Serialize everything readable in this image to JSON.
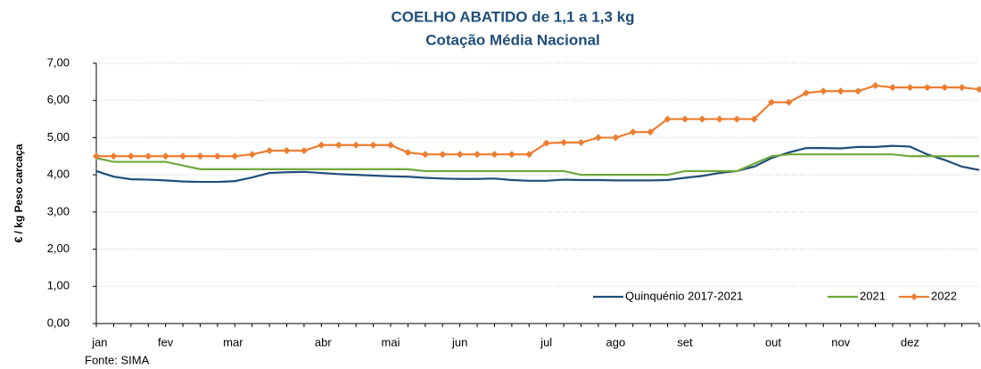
{
  "chart_data": {
    "type": "line",
    "title": "COELHO ABATIDO de 1,1 a 1,3 kg",
    "subtitle": "Cotação Média Nacional",
    "y_label": "€ / kg Peso carcaça",
    "source": "Fonte: SIMA",
    "x": [
      1,
      2,
      3,
      4,
      5,
      6,
      7,
      8,
      9,
      10,
      11,
      12,
      13,
      14,
      15,
      16,
      17,
      18,
      19,
      20,
      21,
      22,
      23,
      24,
      25,
      26,
      27,
      28,
      29,
      30,
      31,
      32,
      33,
      34,
      35,
      36,
      37,
      38,
      39,
      40,
      41,
      42,
      43,
      44,
      45,
      46,
      47,
      48,
      49,
      50,
      51,
      52
    ],
    "xlim": [
      1,
      52
    ],
    "xticks": [
      {
        "value": 1.2,
        "label": "jan"
      },
      {
        "value": 5,
        "label": "fev"
      },
      {
        "value": 8.9,
        "label": "mar"
      },
      {
        "value": 14.1,
        "label": "abr"
      },
      {
        "value": 18,
        "label": "mai"
      },
      {
        "value": 22,
        "label": "jun"
      },
      {
        "value": 27,
        "label": "jul"
      },
      {
        "value": 31,
        "label": "ago"
      },
      {
        "value": 35,
        "label": "set"
      },
      {
        "value": 40.1,
        "label": "out"
      },
      {
        "value": 44,
        "label": "nov"
      },
      {
        "value": 48,
        "label": "dez"
      }
    ],
    "ylim": [
      0,
      7
    ],
    "yticks": [
      {
        "value": 0,
        "label": "0,00"
      },
      {
        "value": 1,
        "label": "1,00"
      },
      {
        "value": 2,
        "label": "2,00"
      },
      {
        "value": 3,
        "label": "3,00"
      },
      {
        "value": 4,
        "label": "4,00"
      },
      {
        "value": 5,
        "label": "5,00"
      },
      {
        "value": 6,
        "label": "6,00"
      },
      {
        "value": 7,
        "label": "7,00"
      }
    ],
    "grid": true,
    "legend": "bottom-right",
    "series": [
      {
        "name": "Quinquénio 2017-2021",
        "color": "#1f4e79",
        "marker": false,
        "values": [
          4.1,
          3.95,
          3.88,
          3.87,
          3.85,
          3.82,
          3.81,
          3.81,
          3.83,
          3.93,
          4.05,
          4.07,
          4.08,
          4.05,
          4.02,
          4.0,
          3.98,
          3.96,
          3.95,
          3.92,
          3.9,
          3.89,
          3.89,
          3.9,
          3.86,
          3.84,
          3.84,
          3.87,
          3.86,
          3.86,
          3.85,
          3.85,
          3.85,
          3.86,
          3.92,
          3.97,
          4.05,
          4.1,
          4.22,
          4.45,
          4.6,
          4.72,
          4.72,
          4.71,
          4.75,
          4.75,
          4.78,
          4.76,
          4.55,
          4.4,
          4.22,
          4.13
        ]
      },
      {
        "name": "2021",
        "color": "#70a83b",
        "marker": false,
        "values": [
          4.45,
          4.35,
          4.35,
          4.35,
          4.35,
          4.25,
          4.15,
          4.15,
          4.15,
          4.15,
          4.15,
          4.15,
          4.15,
          4.15,
          4.15,
          4.15,
          4.15,
          4.15,
          4.15,
          4.1,
          4.1,
          4.1,
          4.1,
          4.1,
          4.1,
          4.1,
          4.1,
          4.1,
          4.0,
          4.0,
          4.0,
          4.0,
          4.0,
          4.0,
          4.1,
          4.1,
          4.1,
          4.1,
          4.3,
          4.5,
          4.55,
          4.55,
          4.55,
          4.55,
          4.55,
          4.55,
          4.55,
          4.5,
          4.5,
          4.5,
          4.5,
          4.5
        ]
      },
      {
        "name": "2022",
        "color": "#ed7d31",
        "marker": true,
        "values": [
          4.5,
          4.5,
          4.5,
          4.5,
          4.5,
          4.5,
          4.5,
          4.5,
          4.5,
          4.55,
          4.65,
          4.65,
          4.65,
          4.8,
          4.8,
          4.8,
          4.8,
          4.8,
          4.6,
          4.55,
          4.55,
          4.55,
          4.55,
          4.55,
          4.55,
          4.55,
          4.85,
          4.87,
          4.87,
          5.0,
          5.0,
          5.15,
          5.15,
          5.5,
          5.5,
          5.5,
          5.5,
          5.5,
          5.5,
          5.95,
          5.95,
          6.2,
          6.25,
          6.25,
          6.25,
          6.4,
          6.35,
          6.35,
          6.35,
          6.35,
          6.35,
          6.3
        ]
      }
    ]
  }
}
